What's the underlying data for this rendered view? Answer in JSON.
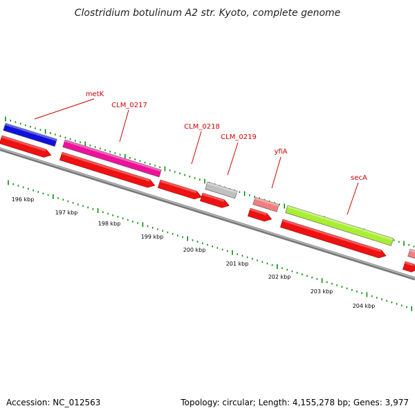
{
  "title": "Clostridium botulinum A2 str. Kyoto, complete genome",
  "footer": {
    "accession": "Accession: NC_012563",
    "summary": "Topology: circular; Length: 4,155,278 bp; Genes: 3,977"
  },
  "colors": {
    "backbone": "#7a7a7a",
    "tick": "#0a8a0a",
    "label": "#cc0000",
    "cds_arrow": "#ee1111"
  },
  "ruler": {
    "unit": "kbp",
    "labels": [
      "196 kbp",
      "197 kbp",
      "198 kbp",
      "199 kbp",
      "200 kbp",
      "201 kbp",
      "202 kbp",
      "203 kbp",
      "204 kbp"
    ]
  },
  "genes": [
    {
      "name": "",
      "color": "#1010dd"
    },
    {
      "name": "metK",
      "color": "#1010dd"
    },
    {
      "name": "CLM_0217",
      "color": "#ee1199"
    },
    {
      "name": "CLM_0218",
      "color": "#ee1111"
    },
    {
      "name": "CLM_0219",
      "color": "#c0c0c0"
    },
    {
      "name": "yfiA",
      "color": "#f08080"
    },
    {
      "name": "secA",
      "color": "#aaee33"
    },
    {
      "name": "",
      "color": "#f08080"
    }
  ]
}
